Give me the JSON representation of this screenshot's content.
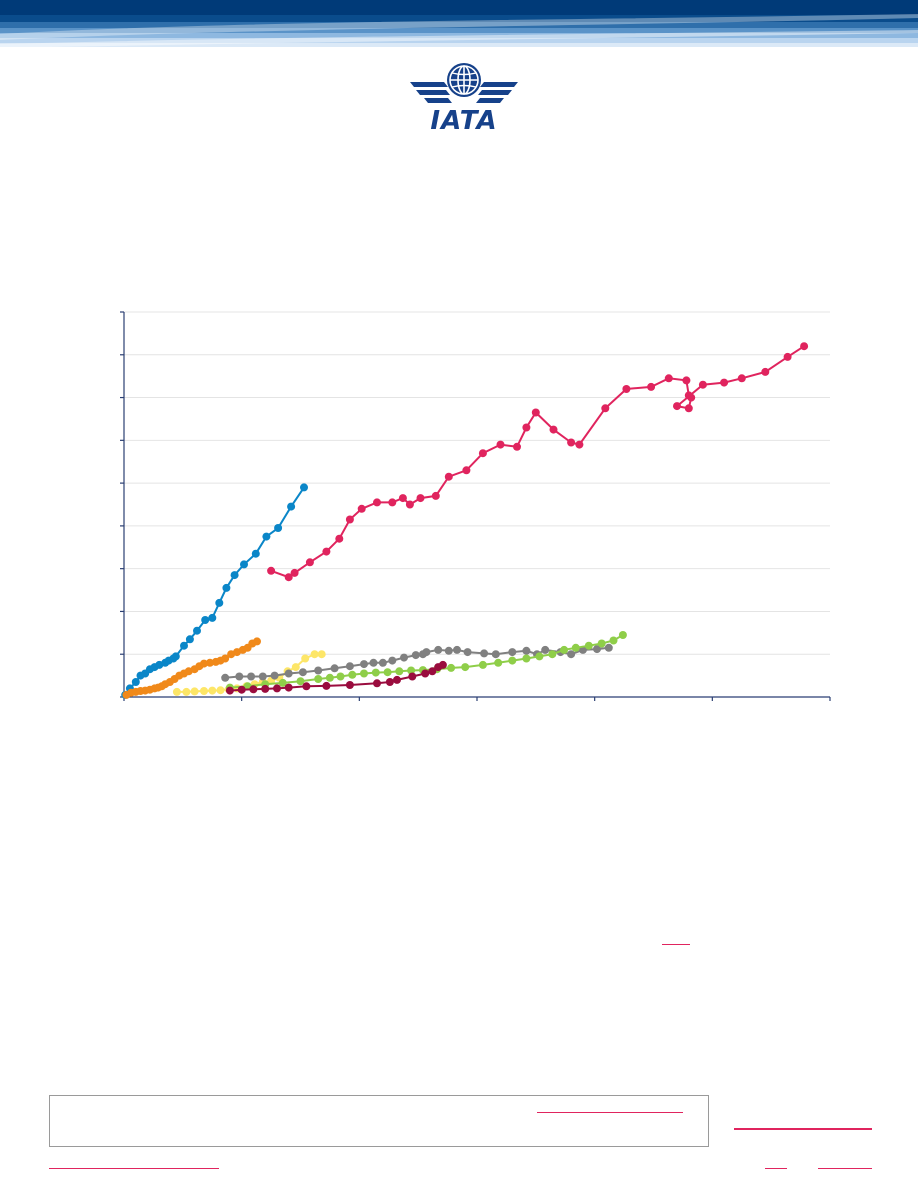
{
  "brand": {
    "logo_text": "IATA",
    "colors": {
      "banner_dark": "#003a78",
      "logo_blue": "#16418a",
      "accent_red": "#e0245e"
    }
  },
  "chart_data": {
    "type": "line",
    "title": "",
    "xlabel": "",
    "ylabel": "",
    "xlim": [
      0,
      60
    ],
    "ylim": [
      0,
      9
    ],
    "x_ticks": [
      0,
      10,
      20,
      30,
      40,
      50,
      60
    ],
    "y_ticks": [
      0,
      1,
      2,
      3,
      4,
      5,
      6,
      7,
      8,
      9
    ],
    "grid": true,
    "series": [
      {
        "color": "#0a86c8",
        "x": [
          0.1,
          0.5,
          1.0,
          1.4,
          1.8,
          2.2,
          2.6,
          3.0,
          3.5,
          3.8,
          4.2,
          4.4,
          5.1,
          5.6,
          6.2,
          6.9,
          7.5,
          8.1,
          8.7,
          9.4,
          10.2,
          11.2,
          12.1,
          13.1,
          14.2,
          15.3
        ],
        "y": [
          0.05,
          0.2,
          0.35,
          0.5,
          0.55,
          0.65,
          0.7,
          0.75,
          0.8,
          0.85,
          0.9,
          0.95,
          1.2,
          1.35,
          1.55,
          1.8,
          1.85,
          2.2,
          2.55,
          2.85,
          3.1,
          3.35,
          3.75,
          3.95,
          4.45,
          4.9
        ]
      },
      {
        "color": "#f0891a",
        "x": [
          0.2,
          0.6,
          1.0,
          1.4,
          1.8,
          2.2,
          2.6,
          2.9,
          3.2,
          3.5,
          3.9,
          4.3,
          4.7,
          5.1,
          5.5,
          6.0,
          6.4,
          6.8,
          7.3,
          7.8,
          8.2,
          8.6,
          9.1,
          9.6,
          10.1,
          10.5,
          10.9,
          11.3
        ],
        "y": [
          0.05,
          0.1,
          0.12,
          0.14,
          0.15,
          0.17,
          0.2,
          0.22,
          0.25,
          0.3,
          0.35,
          0.42,
          0.5,
          0.55,
          0.6,
          0.65,
          0.72,
          0.78,
          0.8,
          0.82,
          0.85,
          0.9,
          1.0,
          1.05,
          1.1,
          1.15,
          1.25,
          1.3
        ]
      },
      {
        "color": "#fde668",
        "x": [
          4.5,
          5.3,
          6.0,
          6.8,
          7.5,
          8.2,
          8.9,
          9.6,
          10.4,
          11.1,
          11.8,
          12.5,
          13.2,
          13.9,
          14.6,
          15.4,
          16.2,
          16.8
        ],
        "y": [
          0.12,
          0.12,
          0.13,
          0.14,
          0.15,
          0.16,
          0.18,
          0.2,
          0.25,
          0.3,
          0.35,
          0.38,
          0.45,
          0.6,
          0.7,
          0.9,
          1.0,
          1.0
        ]
      },
      {
        "color": "#e0245e",
        "x": [
          12.5,
          14.0,
          14.5,
          15.8,
          17.2,
          18.3,
          19.2,
          20.2,
          21.5,
          22.8,
          23.7,
          24.3,
          25.2,
          26.5,
          27.6,
          29.1,
          30.5,
          32.0,
          33.4,
          34.2,
          35.0,
          36.5,
          38.0,
          38.7,
          40.9,
          42.7,
          44.8,
          46.3,
          47.8,
          48.0,
          48.2,
          48.0,
          47.0,
          49.2,
          51.0,
          52.5,
          54.5,
          56.4,
          57.8
        ],
        "y": [
          2.95,
          2.8,
          2.9,
          3.15,
          3.4,
          3.7,
          4.15,
          4.4,
          4.55,
          4.55,
          4.65,
          4.5,
          4.65,
          4.7,
          5.15,
          5.3,
          5.7,
          5.9,
          5.85,
          6.3,
          6.65,
          6.25,
          5.95,
          5.9,
          6.75,
          7.2,
          7.25,
          7.45,
          7.4,
          7.05,
          7.0,
          6.75,
          6.8,
          7.3,
          7.35,
          7.45,
          7.6,
          7.95,
          8.2
        ]
      },
      {
        "color": "#808080",
        "x": [
          8.6,
          9.8,
          10.8,
          11.8,
          12.8,
          14.0,
          15.2,
          16.5,
          17.9,
          19.2,
          20.4,
          21.2,
          22.0,
          22.8,
          23.8,
          24.8,
          25.4,
          25.7,
          26.7,
          27.6,
          28.3,
          29.2,
          30.6,
          31.6,
          33.0,
          34.2,
          35.1,
          35.8,
          37.1,
          38.0,
          39.0,
          40.2,
          41.2
        ],
        "y": [
          0.45,
          0.48,
          0.48,
          0.48,
          0.5,
          0.55,
          0.58,
          0.62,
          0.67,
          0.72,
          0.77,
          0.8,
          0.8,
          0.85,
          0.92,
          0.98,
          1.0,
          1.05,
          1.1,
          1.08,
          1.1,
          1.05,
          1.02,
          1.0,
          1.05,
          1.08,
          1.0,
          1.1,
          1.05,
          1.0,
          1.1,
          1.12,
          1.15
        ]
      },
      {
        "color": "#8fce49",
        "x": [
          9.0,
          10.5,
          12.0,
          13.5,
          15.0,
          16.5,
          17.5,
          18.4,
          19.4,
          20.4,
          21.4,
          22.4,
          23.4,
          24.4,
          25.4,
          26.6,
          27.8,
          29.0,
          30.5,
          31.8,
          33.0,
          34.2,
          35.3,
          36.4,
          37.4,
          38.4,
          39.5,
          40.6,
          41.6,
          42.4
        ],
        "y": [
          0.22,
          0.25,
          0.3,
          0.33,
          0.37,
          0.42,
          0.45,
          0.48,
          0.52,
          0.55,
          0.57,
          0.58,
          0.6,
          0.62,
          0.63,
          0.65,
          0.68,
          0.7,
          0.75,
          0.8,
          0.85,
          0.9,
          0.95,
          1.0,
          1.1,
          1.15,
          1.2,
          1.25,
          1.32,
          1.45
        ]
      },
      {
        "color": "#9a0c3e",
        "x": [
          9.0,
          10.0,
          11.0,
          12.0,
          13.0,
          14.0,
          15.5,
          17.2,
          19.2,
          21.5,
          22.6,
          23.2,
          24.5,
          25.6,
          26.2,
          26.7,
          27.1
        ],
        "y": [
          0.15,
          0.17,
          0.18,
          0.19,
          0.2,
          0.22,
          0.25,
          0.26,
          0.28,
          0.32,
          0.35,
          0.4,
          0.48,
          0.55,
          0.6,
          0.7,
          0.75
        ]
      }
    ]
  }
}
